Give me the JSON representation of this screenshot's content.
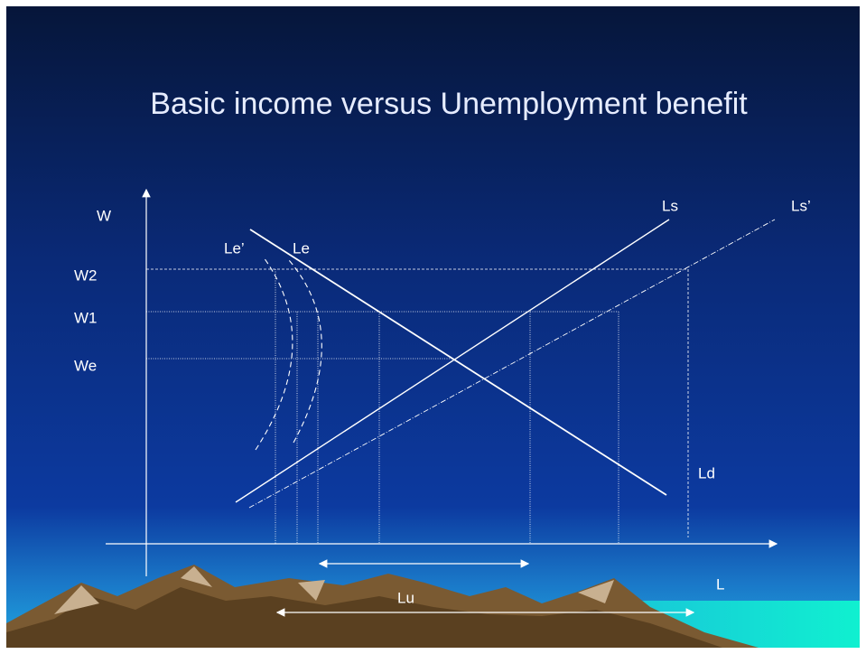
{
  "title": "Basic income versus Unemployment benefit",
  "labels": {
    "w": "W",
    "w2": "W2",
    "w1": "W1",
    "we": "We",
    "le_prime": "Le’",
    "le": "Le",
    "ls": "Ls",
    "ls_prime": "Ls’",
    "ld": "Ld",
    "l": "L",
    "lu": "Lu"
  }
}
